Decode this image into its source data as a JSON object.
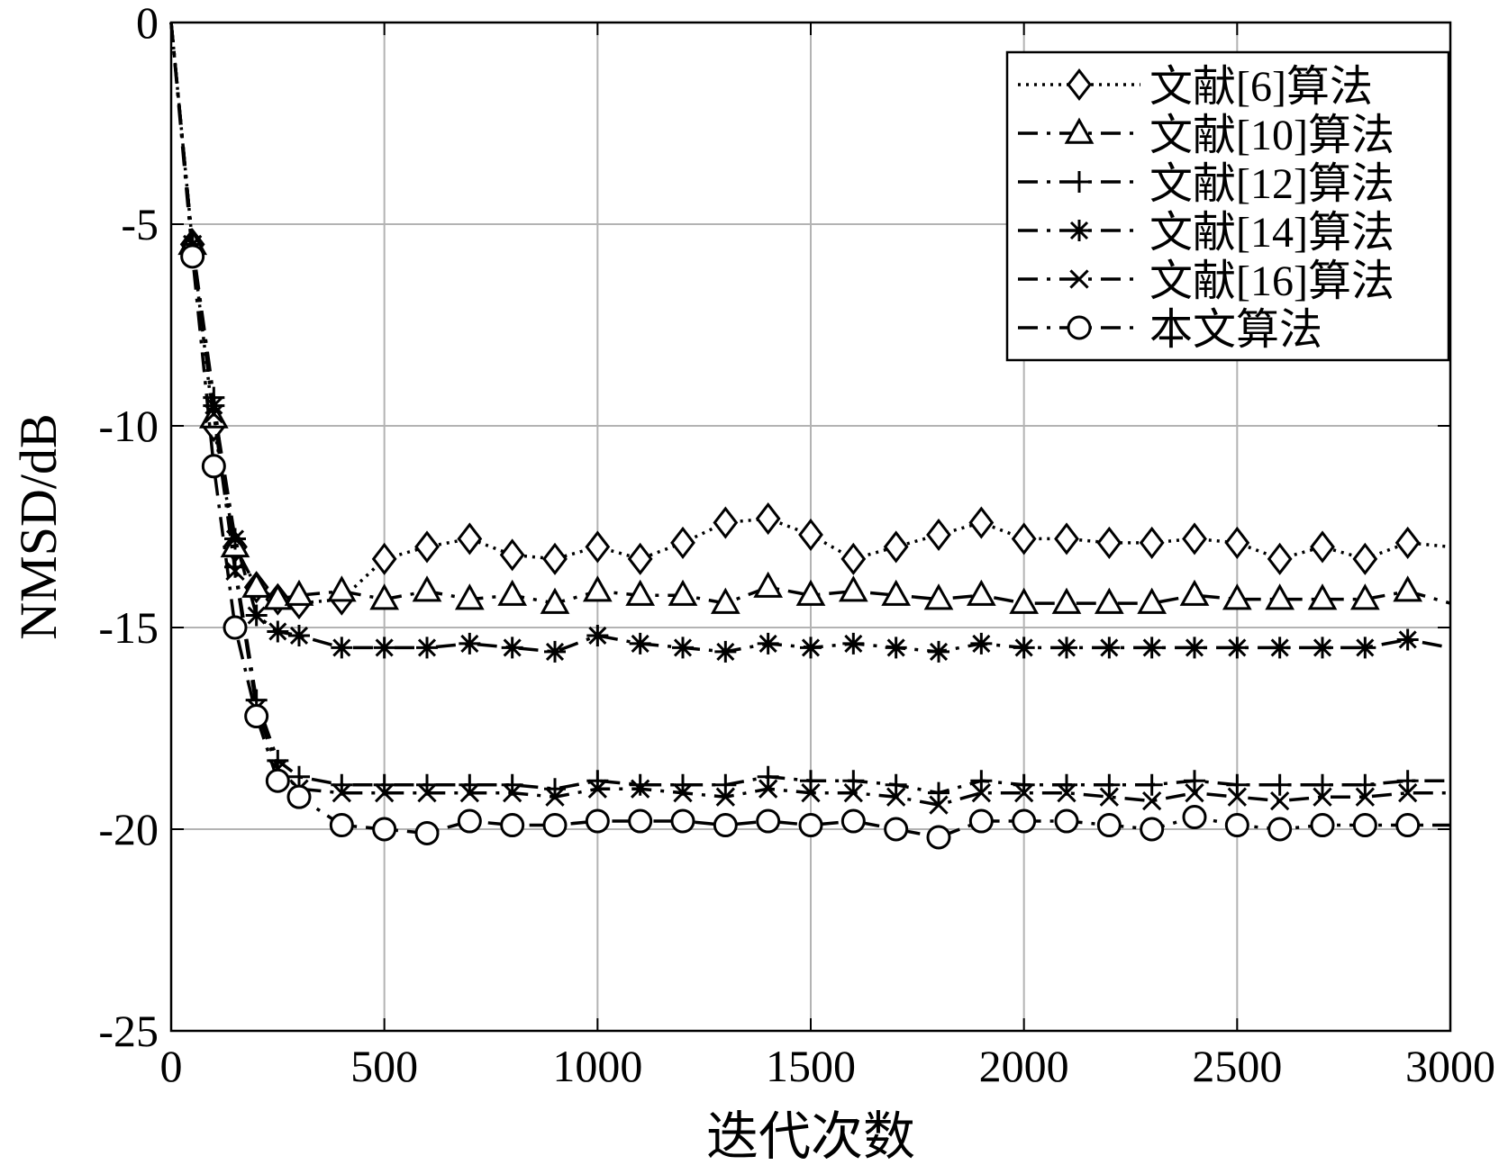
{
  "chart_data": {
    "type": "line",
    "xlabel": "迭代次数",
    "ylabel": "NMSD/dB",
    "xlim": [
      0,
      3000
    ],
    "ylim": [
      -25,
      0
    ],
    "xticks": [
      "0",
      "500",
      "1000",
      "1500",
      "2000",
      "2500",
      "3000"
    ],
    "yticks": [
      "0",
      "-5",
      "-10",
      "-15",
      "-20",
      "-25"
    ],
    "grid": true,
    "legend_position": "top-right",
    "line_color": "#000000",
    "x": [
      0,
      50,
      100,
      150,
      200,
      250,
      300,
      400,
      500,
      600,
      700,
      800,
      900,
      1000,
      1100,
      1200,
      1300,
      1400,
      1500,
      1600,
      1700,
      1800,
      1900,
      2000,
      2100,
      2200,
      2300,
      2400,
      2500,
      2600,
      2700,
      2800,
      2900,
      3000
    ],
    "series": [
      {
        "name": "文献[6]算法",
        "marker": "diamond",
        "dash": "dotted",
        "values": [
          0,
          -5.5,
          -10.0,
          -13.0,
          -14.0,
          -14.3,
          -14.4,
          -14.3,
          -13.3,
          -13.0,
          -12.8,
          -13.2,
          -13.3,
          -13.0,
          -13.3,
          -12.9,
          -12.4,
          -12.3,
          -12.7,
          -13.3,
          -13.0,
          -12.7,
          -12.4,
          -12.8,
          -12.8,
          -12.9,
          -12.9,
          -12.8,
          -12.9,
          -13.3,
          -13.0,
          -13.3,
          -12.9,
          -13.0
        ]
      },
      {
        "name": "文献[10]算法",
        "marker": "triangle",
        "dash": "dashdot",
        "values": [
          0,
          -5.5,
          -9.8,
          -13.0,
          -14.0,
          -14.3,
          -14.2,
          -14.1,
          -14.3,
          -14.1,
          -14.3,
          -14.2,
          -14.4,
          -14.1,
          -14.2,
          -14.2,
          -14.4,
          -14.0,
          -14.2,
          -14.1,
          -14.2,
          -14.3,
          -14.2,
          -14.4,
          -14.4,
          -14.4,
          -14.4,
          -14.2,
          -14.3,
          -14.3,
          -14.3,
          -14.3,
          -14.1,
          -14.4
        ]
      },
      {
        "name": "文献[12]算法",
        "marker": "plus",
        "dash": "dashdot",
        "values": [
          0,
          -5.5,
          -9.3,
          -13.5,
          -16.8,
          -18.3,
          -18.7,
          -18.9,
          -18.9,
          -18.9,
          -18.9,
          -18.9,
          -19.0,
          -18.8,
          -18.9,
          -18.9,
          -18.9,
          -18.7,
          -18.8,
          -18.8,
          -18.9,
          -19.1,
          -18.8,
          -18.9,
          -18.9,
          -18.9,
          -18.9,
          -18.8,
          -18.9,
          -18.9,
          -18.9,
          -18.9,
          -18.8,
          -18.8
        ]
      },
      {
        "name": "文献[14]算法",
        "marker": "asterisk",
        "dash": "dashdot",
        "values": [
          0,
          -5.5,
          -9.5,
          -12.8,
          -14.7,
          -15.1,
          -15.2,
          -15.5,
          -15.5,
          -15.5,
          -15.4,
          -15.5,
          -15.6,
          -15.2,
          -15.4,
          -15.5,
          -15.6,
          -15.4,
          -15.5,
          -15.4,
          -15.5,
          -15.6,
          -15.4,
          -15.5,
          -15.5,
          -15.5,
          -15.5,
          -15.5,
          -15.5,
          -15.5,
          -15.5,
          -15.5,
          -15.3,
          -15.5
        ]
      },
      {
        "name": "文献[16]算法",
        "marker": "cross",
        "dash": "dashdot",
        "values": [
          0,
          -5.5,
          -9.7,
          -13.6,
          -17.0,
          -18.5,
          -19.0,
          -19.1,
          -19.1,
          -19.1,
          -19.1,
          -19.1,
          -19.2,
          -19.0,
          -19.0,
          -19.1,
          -19.2,
          -19.0,
          -19.1,
          -19.1,
          -19.2,
          -19.4,
          -19.1,
          -19.1,
          -19.1,
          -19.2,
          -19.3,
          -19.1,
          -19.2,
          -19.3,
          -19.2,
          -19.2,
          -19.1,
          -19.1
        ]
      },
      {
        "name": "本文算法",
        "marker": "circle",
        "dash": "dashdot",
        "values": [
          0,
          -5.8,
          -11.0,
          -15.0,
          -17.2,
          -18.8,
          -19.2,
          -19.9,
          -20.0,
          -20.1,
          -19.8,
          -19.9,
          -19.9,
          -19.8,
          -19.8,
          -19.8,
          -19.9,
          -19.8,
          -19.9,
          -19.8,
          -20.0,
          -20.2,
          -19.8,
          -19.8,
          -19.8,
          -19.9,
          -20.0,
          -19.7,
          -19.9,
          -20.0,
          -19.9,
          -19.9,
          -19.9,
          -19.9
        ]
      }
    ]
  }
}
